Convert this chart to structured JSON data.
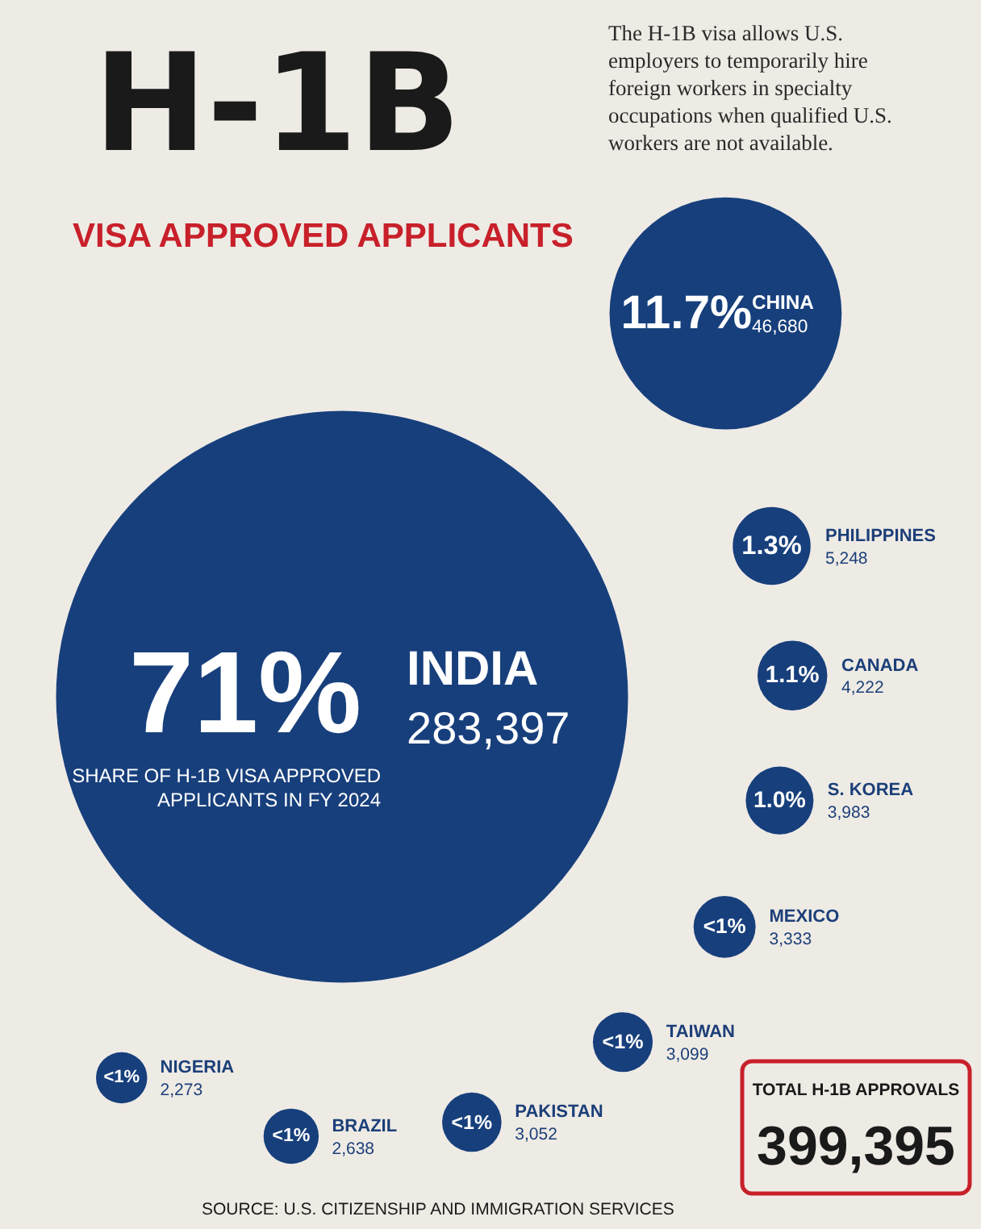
{
  "chart_data": {
    "type": "other",
    "title": "H-1B",
    "subtitle": "VISA APPROVED APPLICANTS",
    "categories": [
      "INDIA",
      "CHINA",
      "PHILIPPINES",
      "CANADA",
      "S. KOREA",
      "MEXICO",
      "TAIWAN",
      "PAKISTAN",
      "BRAZIL",
      "NIGERIA"
    ],
    "values": [
      283397,
      46680,
      5248,
      4222,
      3983,
      3333,
      3099,
      3052,
      2638,
      2273
    ],
    "value_labels": [
      "283,397",
      "46,680",
      "5,248",
      "4,222",
      "3,983",
      "3,333",
      "3,099",
      "3,052",
      "2,638",
      "2,273"
    ],
    "colors": [
      "#173f7c",
      "#173f7c",
      "#173f7c",
      "#173f7c",
      "#173f7c",
      "#173f7c",
      "#173f7c",
      "#173f7c",
      "#173f7c",
      "#173f7c"
    ],
    "annotations": [
      {
        "text": "71%",
        "x": "INDIA"
      },
      {
        "text": "11.7%",
        "x": "CHINA"
      },
      {
        "text": "1.3%",
        "x": "PHILIPPINES"
      },
      {
        "text": "1.1%",
        "x": "CANADA"
      },
      {
        "text": "1.0%",
        "x": "S. KOREA"
      },
      {
        "text": "<1%",
        "x": "MEXICO"
      },
      {
        "text": "<1%",
        "x": "TAIWAN"
      },
      {
        "text": "<1%",
        "x": "PAKISTAN"
      },
      {
        "text": "<1%",
        "x": "BRAZIL"
      },
      {
        "text": "<1%",
        "x": "NIGERIA"
      },
      "SHARE OF H-1B VISA APPROVED APPLICANTS IN FY 2024",
      "The H-1B visa allows U.S. employers to temporarily hire foreign workers in specialty occupations when qualified U.S. workers are not available.",
      "TOTAL H-1B APPROVALS",
      "399,395",
      "SOURCE: U.S. CITIZENSHIP AND IMMIGRATION SERVICES"
    ]
  }
}
